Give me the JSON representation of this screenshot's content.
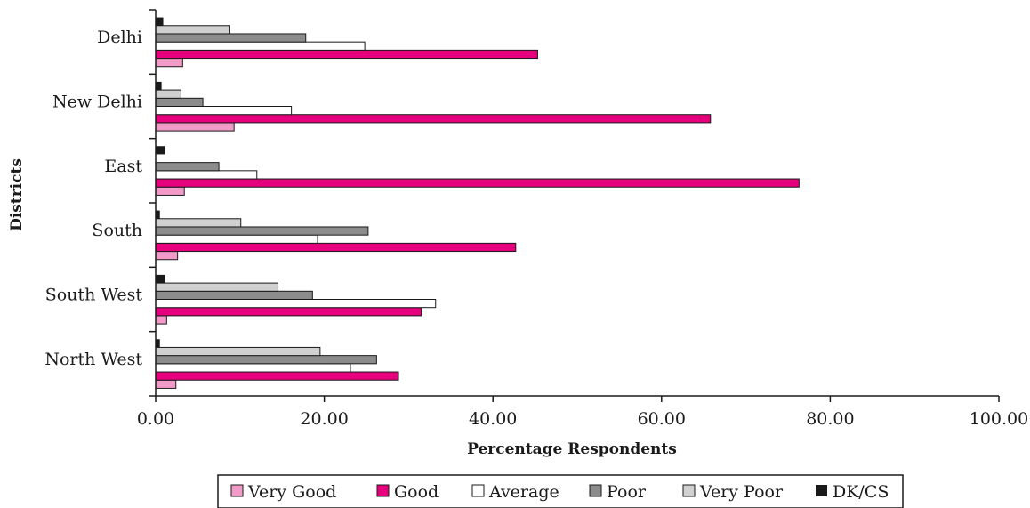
{
  "chart_data": {
    "type": "bar",
    "orientation": "horizontal",
    "title": "",
    "xlabel": "Percentage Respondents",
    "ylabel": "Districts",
    "xlim": [
      0,
      100
    ],
    "xticks": [
      "0.00",
      "20.00",
      "40.00",
      "60.00",
      "80.00",
      "100.00"
    ],
    "categories": [
      "Delhi",
      "New Delhi",
      "East",
      "South",
      "South West",
      "North West"
    ],
    "series": [
      {
        "name": "Very Good",
        "color": "#f29bc9",
        "values": [
          3.2,
          9.3,
          3.4,
          2.6,
          1.3,
          2.4
        ]
      },
      {
        "name": "Good",
        "color": "#e6007e",
        "values": [
          45.3,
          65.8,
          76.3,
          42.7,
          31.5,
          28.8
        ]
      },
      {
        "name": "Average",
        "color": "#ffffff",
        "values": [
          24.8,
          16.1,
          12.0,
          19.2,
          33.2,
          23.1
        ]
      },
      {
        "name": "Poor",
        "color": "#8c8c8c",
        "values": [
          17.8,
          5.6,
          7.5,
          25.2,
          18.6,
          26.2
        ]
      },
      {
        "name": "Very Poor",
        "color": "#d0d0d0",
        "values": [
          8.8,
          3.0,
          0.0,
          10.1,
          14.5,
          19.5
        ]
      },
      {
        "name": "DK/CS",
        "color": "#1a1a1a",
        "values": [
          0.9,
          0.7,
          1.1,
          0.5,
          1.1,
          0.5
        ]
      }
    ],
    "grid": false,
    "legend_position": "bottom"
  }
}
